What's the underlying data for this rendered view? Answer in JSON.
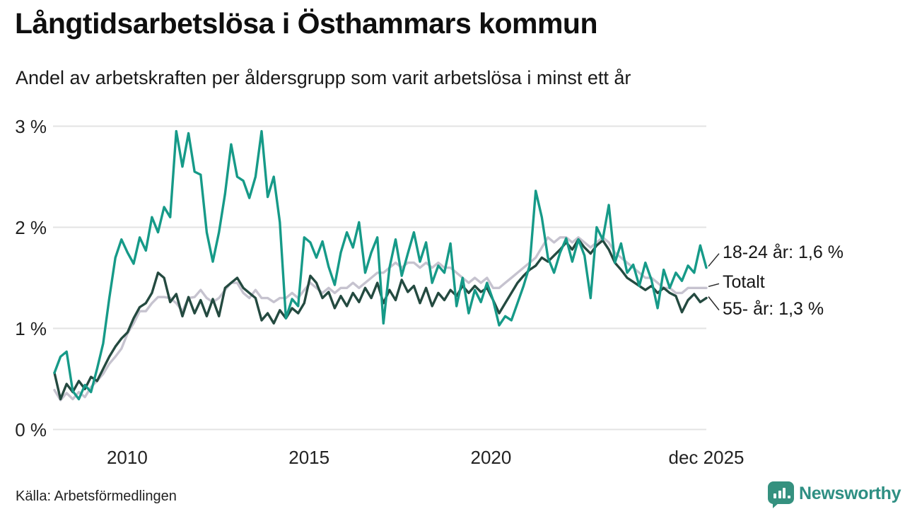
{
  "header": {
    "title": "Långtidsarbetslösa i Östhammars kommun",
    "subtitle": "Andel av arbetskraften per åldersgrupp som varit arbetslösa i minst ett år"
  },
  "footer": {
    "source": "Källa: Arbetsförmedlingen",
    "logo_text": "Newsworthy",
    "logo_color": "#2e8f83"
  },
  "colors": {
    "young": "#169a88",
    "old": "#244a40",
    "total": "#c6c3cf",
    "gridline": "#e3e3e3",
    "connector": "#2b2b2b"
  },
  "chart_data": {
    "type": "line",
    "title": "Långtidsarbetslösa i Östhammars kommun",
    "subtitle": "Andel av arbetskraften per åldersgrupp som varit arbetslösa i minst ett år",
    "unit": "% av arbetskraften",
    "x_domain": [
      2008.0,
      2025.92
    ],
    "y_domain": [
      0,
      3
    ],
    "grid": "horizontal",
    "legend_position": "right-annotations",
    "y_ticks": [
      {
        "label": "3 %",
        "value": 3
      },
      {
        "label": "2 %",
        "value": 2
      },
      {
        "label": "1 %",
        "value": 1
      },
      {
        "label": "0 %",
        "value": 0
      }
    ],
    "x_ticks": [
      {
        "label": "2010",
        "value": 2010
      },
      {
        "label": "2015",
        "value": 2015
      },
      {
        "label": "2020",
        "value": 2020
      },
      {
        "label": "dec 2025",
        "value": 2025.92
      }
    ],
    "series": [
      {
        "key": "total",
        "name": "Totalt",
        "color": "#c6c3cf",
        "values": [
          0.39,
          0.29,
          0.36,
          0.3,
          0.37,
          0.32,
          0.42,
          0.48,
          0.55,
          0.65,
          0.72,
          0.8,
          0.95,
          1.05,
          1.17,
          1.17,
          1.25,
          1.31,
          1.31,
          1.3,
          1.25,
          1.17,
          1.3,
          1.31,
          1.38,
          1.3,
          1.26,
          1.3,
          1.38,
          1.45,
          1.45,
          1.35,
          1.3,
          1.38,
          1.3,
          1.3,
          1.26,
          1.3,
          1.3,
          1.35,
          1.3,
          1.38,
          1.45,
          1.4,
          1.35,
          1.4,
          1.35,
          1.4,
          1.4,
          1.45,
          1.4,
          1.45,
          1.5,
          1.55,
          1.55,
          1.6,
          1.65,
          1.6,
          1.65,
          1.65,
          1.6,
          1.65,
          1.6,
          1.65,
          1.6,
          1.6,
          1.55,
          1.5,
          1.45,
          1.5,
          1.45,
          1.5,
          1.4,
          1.4,
          1.45,
          1.5,
          1.55,
          1.6,
          1.65,
          1.7,
          1.8,
          1.9,
          1.85,
          1.9,
          1.9,
          1.85,
          1.9,
          1.85,
          1.8,
          1.85,
          1.9,
          1.85,
          1.75,
          1.7,
          1.65,
          1.6,
          1.55,
          1.5,
          1.5,
          1.45,
          1.4,
          1.4,
          1.35,
          1.35,
          1.4,
          1.4,
          1.4,
          1.4
        ]
      },
      {
        "key": "old",
        "name": "55- år",
        "color": "#244a40",
        "end_label": "55- år: 1,3 %",
        "end_value": 1.3,
        "values": [
          0.56,
          0.3,
          0.45,
          0.37,
          0.48,
          0.4,
          0.52,
          0.48,
          0.6,
          0.72,
          0.82,
          0.9,
          0.96,
          1.1,
          1.21,
          1.25,
          1.35,
          1.55,
          1.5,
          1.26,
          1.34,
          1.12,
          1.31,
          1.15,
          1.28,
          1.12,
          1.29,
          1.12,
          1.4,
          1.45,
          1.5,
          1.4,
          1.35,
          1.3,
          1.08,
          1.15,
          1.05,
          1.18,
          1.1,
          1.2,
          1.15,
          1.25,
          1.52,
          1.45,
          1.3,
          1.36,
          1.2,
          1.32,
          1.22,
          1.35,
          1.26,
          1.4,
          1.3,
          1.45,
          1.25,
          1.38,
          1.28,
          1.48,
          1.36,
          1.42,
          1.25,
          1.4,
          1.22,
          1.35,
          1.28,
          1.38,
          1.32,
          1.42,
          1.35,
          1.42,
          1.36,
          1.4,
          1.28,
          1.15,
          1.25,
          1.35,
          1.45,
          1.52,
          1.58,
          1.62,
          1.7,
          1.66,
          1.72,
          1.78,
          1.85,
          1.78,
          1.88,
          1.8,
          1.74,
          1.82,
          1.87,
          1.78,
          1.65,
          1.58,
          1.5,
          1.46,
          1.42,
          1.38,
          1.42,
          1.35,
          1.4,
          1.35,
          1.32,
          1.16,
          1.28,
          1.34,
          1.26,
          1.3
        ]
      },
      {
        "key": "young",
        "name": "18-24 år",
        "color": "#169a88",
        "end_label": "18-24 år: 1,6 %",
        "end_value": 1.6,
        "values": [
          0.56,
          0.72,
          0.77,
          0.38,
          0.3,
          0.44,
          0.37,
          0.6,
          0.85,
          1.3,
          1.7,
          1.88,
          1.75,
          1.64,
          1.9,
          1.77,
          2.1,
          1.95,
          2.2,
          2.1,
          2.95,
          2.6,
          2.93,
          2.55,
          2.52,
          1.95,
          1.66,
          1.95,
          2.33,
          2.82,
          2.5,
          2.46,
          2.29,
          2.5,
          2.95,
          2.3,
          2.5,
          2.05,
          1.1,
          1.29,
          1.22,
          1.9,
          1.85,
          1.7,
          1.86,
          1.61,
          1.43,
          1.75,
          1.95,
          1.8,
          2.05,
          1.55,
          1.75,
          1.9,
          1.05,
          1.6,
          1.88,
          1.52,
          1.74,
          1.95,
          1.66,
          1.85,
          1.45,
          1.62,
          1.55,
          1.84,
          1.22,
          1.5,
          1.15,
          1.38,
          1.26,
          1.45,
          1.28,
          1.03,
          1.12,
          1.08,
          1.25,
          1.42,
          1.62,
          2.36,
          2.1,
          1.7,
          1.55,
          1.75,
          1.89,
          1.66,
          1.88,
          1.72,
          1.3,
          2.0,
          1.88,
          2.22,
          1.65,
          1.84,
          1.55,
          1.63,
          1.42,
          1.65,
          1.48,
          1.2,
          1.58,
          1.4,
          1.55,
          1.47,
          1.62,
          1.55,
          1.82,
          1.6
        ]
      }
    ],
    "annotations": [
      {
        "series": "young",
        "text": "18-24 år: 1,6 %"
      },
      {
        "series": "total",
        "text": "Totalt"
      },
      {
        "series": "old",
        "text": "55- år: 1,3 %"
      }
    ]
  }
}
